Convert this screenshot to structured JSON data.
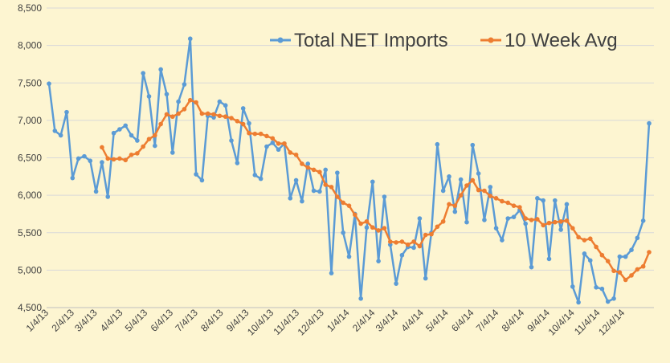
{
  "chart_data": {
    "type": "line",
    "title": "",
    "xlabel": "",
    "ylabel": "",
    "ylim": [
      4500,
      8500
    ],
    "y_ticks": [
      "4,500",
      "5,000",
      "5,500",
      "6,000",
      "6,500",
      "7,000",
      "7,500",
      "8,000",
      "8,500"
    ],
    "x_ticks": [
      "1/4/13",
      "2/4/13",
      "3/4/13",
      "4/4/13",
      "5/4/13",
      "6/4/13",
      "7/4/13",
      "8/4/13",
      "9/4/13",
      "10/4/13",
      "11/4/13",
      "12/4/13",
      "1/4/14",
      "2/4/14",
      "3/4/14",
      "4/4/14",
      "5/4/14",
      "6/4/14",
      "7/4/14",
      "8/4/14",
      "9/4/14",
      "10/4/14",
      "11/4/14",
      "12/4/14"
    ],
    "x_start": "2013-01-04",
    "x_end": "2015-01-02",
    "grid": true,
    "legend_position": "top-right",
    "series": [
      {
        "name": "Total NET Imports",
        "color": "#5b9bd5",
        "values": [
          7490,
          6860,
          6800,
          7110,
          6230,
          6490,
          6520,
          6460,
          6050,
          6440,
          5980,
          6830,
          6880,
          6930,
          6800,
          6730,
          7630,
          7320,
          6660,
          7680,
          7350,
          6570,
          7250,
          7480,
          8090,
          6280,
          6200,
          7060,
          7040,
          7250,
          7200,
          6730,
          6430,
          7160,
          6960,
          6270,
          6220,
          6650,
          6700,
          6610,
          6690,
          5960,
          6200,
          5920,
          6420,
          6060,
          6050,
          6340,
          4960,
          6300,
          5500,
          5180,
          5750,
          4620,
          5570,
          6180,
          5120,
          5980,
          5340,
          4820,
          5200,
          5310,
          5300,
          5690,
          4890,
          5500,
          6680,
          6060,
          6250,
          5780,
          6210,
          5640,
          6670,
          6290,
          5670,
          6110,
          5560,
          5400,
          5690,
          5710,
          5800,
          5620,
          5040,
          5960,
          5930,
          5150,
          5930,
          5540,
          5880,
          4780,
          4570,
          5220,
          5130,
          4770,
          4750,
          4580,
          4620,
          5180,
          5180,
          5270,
          5430,
          5660,
          6960
        ]
      },
      {
        "name": "10 Week Avg",
        "color": "#ed7d31",
        "start_index": 9,
        "values": [
          6640,
          6490,
          6480,
          6490,
          6470,
          6540,
          6560,
          6650,
          6750,
          6800,
          6950,
          7080,
          7050,
          7090,
          7150,
          7270,
          7240,
          7090,
          7090,
          7080,
          7060,
          7050,
          7030,
          6990,
          6950,
          6830,
          6820,
          6820,
          6790,
          6760,
          6690,
          6690,
          6570,
          6540,
          6420,
          6370,
          6340,
          6310,
          6140,
          6110,
          5980,
          5900,
          5860,
          5740,
          5620,
          5650,
          5570,
          5530,
          5560,
          5380,
          5370,
          5380,
          5340,
          5380,
          5320,
          5470,
          5480,
          5580,
          5650,
          5880,
          5860,
          6000,
          6130,
          6200,
          6070,
          6060,
          5990,
          5960,
          5920,
          5900,
          5860,
          5840,
          5690,
          5670,
          5680,
          5600,
          5630,
          5640,
          5650,
          5660,
          5560,
          5440,
          5400,
          5420,
          5310,
          5200,
          5120,
          4990,
          4970,
          4870,
          4930,
          5010,
          5050,
          5240
        ]
      }
    ]
  }
}
